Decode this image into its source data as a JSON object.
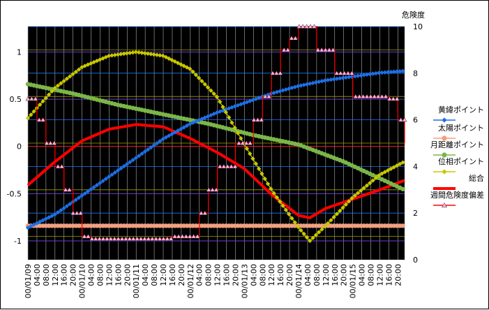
{
  "chart_data": {
    "type": "line",
    "title": "",
    "y2_title": "危険度",
    "y_ticks": [
      "-1",
      "-0.5",
      "0",
      "0.5",
      "1"
    ],
    "y2_ticks": [
      "0",
      "2",
      "4",
      "6",
      "8",
      "10"
    ],
    "ylim": [
      -1.2,
      1.27
    ],
    "y2lim": [
      0,
      10
    ],
    "grid": true,
    "legend_position": "right",
    "x_tick_labels": [
      "00/01/09",
      "04:00",
      "08:00",
      "12:00",
      "16:00",
      "20:00",
      "00/01/10",
      "04:00",
      "08:00",
      "12:00",
      "16:00",
      "20:00",
      "00/01/11",
      "04:00",
      "08:00",
      "12:00",
      "16:00",
      "20:00",
      "00/01/12",
      "04:00",
      "08:00",
      "12:00",
      "16:00",
      "20:00",
      "00/01/13",
      "04:00",
      "08:00",
      "12:00",
      "16:00",
      "20:00",
      "00/01/14",
      "04:00",
      "08:00",
      "12:00",
      "16:00",
      "20:00",
      "00/01/15",
      "04:00",
      "08:00",
      "12:00",
      "16:00",
      "20:00"
    ],
    "x_range_hours": [
      0,
      167
    ],
    "series": [
      {
        "name": "黄緯ポイント",
        "axis": "left",
        "color": "#1e6fe6",
        "marker": "diamond",
        "points": [
          [
            0,
            -0.86
          ],
          [
            12,
            -0.72
          ],
          [
            24,
            -0.52
          ],
          [
            36,
            -0.32
          ],
          [
            48,
            -0.12
          ],
          [
            60,
            0.08
          ],
          [
            72,
            0.24
          ],
          [
            84,
            0.36
          ],
          [
            96,
            0.46
          ],
          [
            108,
            0.56
          ],
          [
            120,
            0.64
          ],
          [
            132,
            0.7
          ],
          [
            144,
            0.74
          ],
          [
            156,
            0.78
          ],
          [
            167,
            0.8
          ]
        ]
      },
      {
        "name": "太陽ポイント",
        "axis": "left",
        "color": "#f0a080",
        "marker": "circle",
        "points": [
          [
            0,
            -0.84
          ],
          [
            167,
            -0.84
          ]
        ]
      },
      {
        "name": "月距離ポイント",
        "axis": "left",
        "color": "#7ab648",
        "marker": "circle",
        "points": [
          [
            0,
            0.66
          ],
          [
            20,
            0.56
          ],
          [
            40,
            0.44
          ],
          [
            60,
            0.34
          ],
          [
            80,
            0.24
          ],
          [
            100,
            0.12
          ],
          [
            120,
            0.02
          ],
          [
            140,
            -0.16
          ],
          [
            167,
            -0.46
          ]
        ]
      },
      {
        "name": "位相ポイント",
        "axis": "left",
        "color": "#c8c800",
        "marker": "diamond",
        "points": [
          [
            0,
            0.3
          ],
          [
            12,
            0.62
          ],
          [
            24,
            0.84
          ],
          [
            36,
            0.96
          ],
          [
            48,
            1.0
          ],
          [
            60,
            0.96
          ],
          [
            72,
            0.82
          ],
          [
            84,
            0.52
          ],
          [
            96,
            0.02
          ],
          [
            108,
            -0.46
          ],
          [
            120,
            -0.86
          ],
          [
            125,
            -1.0
          ],
          [
            132,
            -0.84
          ],
          [
            144,
            -0.54
          ],
          [
            156,
            -0.3
          ],
          [
            167,
            -0.16
          ]
        ]
      },
      {
        "name": "総合",
        "axis": "right",
        "color": "#ff0000",
        "marker": "none",
        "points": [
          [
            0,
            3.2
          ],
          [
            12,
            4.2
          ],
          [
            24,
            5.1
          ],
          [
            36,
            5.6
          ],
          [
            48,
            5.8
          ],
          [
            60,
            5.7
          ],
          [
            72,
            5.2
          ],
          [
            84,
            4.6
          ],
          [
            96,
            3.9
          ],
          [
            108,
            2.8
          ],
          [
            120,
            1.9
          ],
          [
            125,
            1.8
          ],
          [
            132,
            2.2
          ],
          [
            144,
            2.6
          ],
          [
            156,
            3.0
          ],
          [
            167,
            3.4
          ]
        ]
      },
      {
        "name": "週間危険度偏差",
        "axis": "right",
        "color": "#ff0000",
        "marker": "triangle",
        "points": [
          [
            0,
            6.9
          ],
          [
            4,
            6.0
          ],
          [
            8,
            5.0
          ],
          [
            12,
            4.0
          ],
          [
            16,
            3.0
          ],
          [
            20,
            2.0
          ],
          [
            24,
            1.0
          ],
          [
            28,
            0.9
          ],
          [
            32,
            0.9
          ],
          [
            36,
            0.9
          ],
          [
            40,
            0.9
          ],
          [
            44,
            0.9
          ],
          [
            48,
            0.9
          ],
          [
            52,
            0.9
          ],
          [
            56,
            0.9
          ],
          [
            60,
            0.9
          ],
          [
            64,
            1.0
          ],
          [
            68,
            1.0
          ],
          [
            72,
            1.0
          ],
          [
            76,
            2.0
          ],
          [
            80,
            3.0
          ],
          [
            84,
            4.0
          ],
          [
            88,
            4.0
          ],
          [
            92,
            5.0
          ],
          [
            96,
            5.0
          ],
          [
            100,
            6.0
          ],
          [
            104,
            7.0
          ],
          [
            108,
            8.0
          ],
          [
            112,
            9.0
          ],
          [
            116,
            9.5
          ],
          [
            120,
            10.0
          ],
          [
            124,
            10.0
          ],
          [
            128,
            9.0
          ],
          [
            132,
            9.0
          ],
          [
            136,
            8.0
          ],
          [
            140,
            8.0
          ],
          [
            144,
            7.0
          ],
          [
            148,
            7.0
          ],
          [
            152,
            7.0
          ],
          [
            156,
            7.0
          ],
          [
            160,
            6.9
          ],
          [
            164,
            6.0
          ],
          [
            167,
            5.0
          ]
        ]
      }
    ]
  }
}
